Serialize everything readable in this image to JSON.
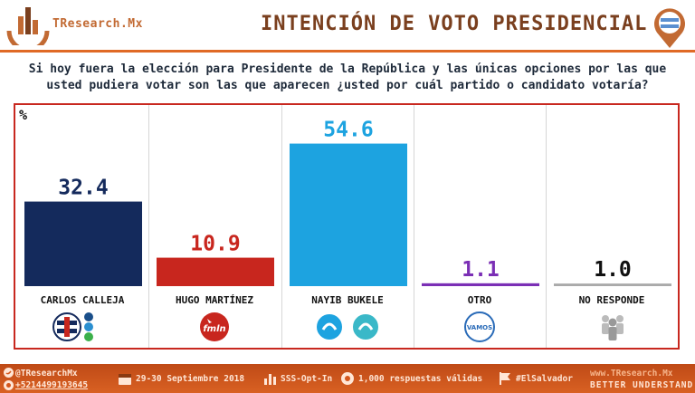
{
  "brand": "TResearch.Mx",
  "title": "INTENCIÓN DE VOTO PRESIDENCIAL",
  "question_line1": "Si hoy fuera la elección para Presidente de la República y las únicas opciones por las que",
  "question_line2": "usted pudiera votar son las que aparecen ¿usted por cuál partido o candidato votaría?",
  "colors": {
    "accent": "#e06a26",
    "frame": "#c8281f",
    "calleja": "#142a5c",
    "martinez": "#c8261e",
    "bukele": "#1da3e0",
    "otro": "#7b2fb5",
    "no_responde": "#aaaaaa"
  },
  "chart_data": {
    "type": "bar",
    "ylabel": "%",
    "categories": [
      "CARLOS CALLEJA",
      "HUGO MARTÍNEZ",
      "NAYIB BUKELE",
      "OTRO",
      "NO RESPONDE"
    ],
    "values": [
      32.4,
      10.9,
      54.6,
      1.1,
      1.0
    ],
    "value_labels": [
      "32.4",
      "10.9",
      "54.6",
      "1.1",
      "1.0"
    ],
    "ylim": [
      0,
      60
    ],
    "grid": false,
    "legend": "none"
  },
  "icons": [
    "arena-party-logos",
    "fmln-logo",
    "gana-logos",
    "vamos-logo",
    "people-icon"
  ],
  "footer": {
    "twitter": "@TResearchMx",
    "phone": "+5214499193645",
    "dates": "29-30 Septiembre 2018",
    "method": "SSS-Opt-In",
    "sample": "1,000 respuestas válidas",
    "hashtag": "#ElSalvador",
    "website": "www.TResearch.Mx",
    "tagline": "BETTER UNDERSTAND"
  }
}
